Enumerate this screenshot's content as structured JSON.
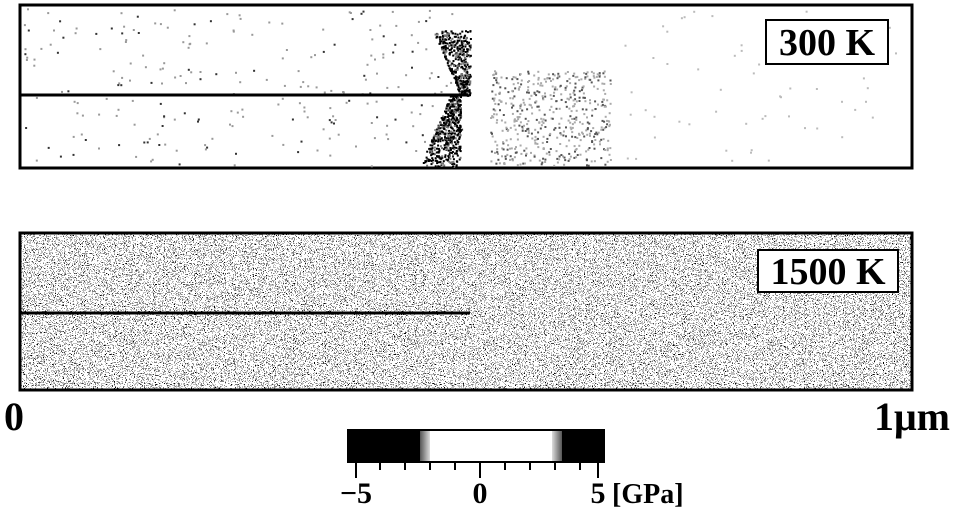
{
  "panels": [
    {
      "label": "300 K"
    },
    {
      "label": "1500 K"
    }
  ],
  "axis": {
    "start": "0",
    "end": "1μm"
  },
  "colorbar": {
    "ticks": [
      "−5",
      "0",
      "5"
    ],
    "unit": "[GPa]"
  }
}
